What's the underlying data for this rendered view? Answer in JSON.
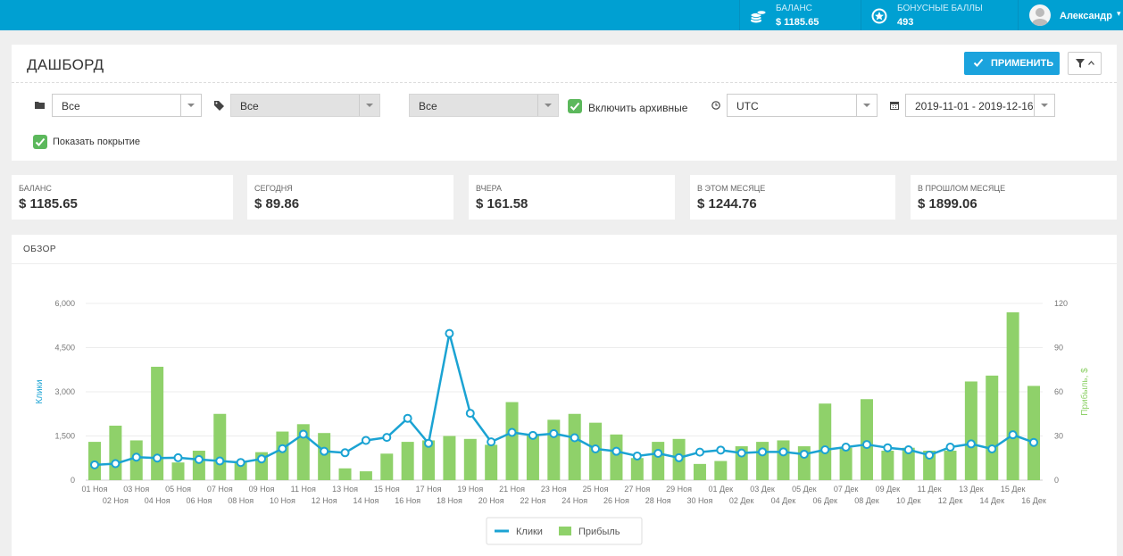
{
  "topbar": {
    "balance": {
      "label": "БАЛАНС",
      "value": "$ 1185.65",
      "icon": "coins-icon"
    },
    "bonus": {
      "label": "БОНУСНЫЕ БАЛЛЫ",
      "value": "493",
      "icon": "star-badge-icon"
    },
    "user": {
      "name": "Александр",
      "icon": "avatar-icon"
    }
  },
  "header": {
    "title": "ДАШБОРД",
    "apply_label": "ПРИМЕНИТЬ"
  },
  "filters": {
    "folder_value": "Все",
    "tag_value": "Все",
    "third_value": "Все",
    "archive_label": "Включить архивные",
    "archive_checked": true,
    "timezone": "UTC",
    "date_range": "2019-11-01 - 2019-12-16",
    "coverage_label": "Показать покрытие",
    "coverage_checked": true
  },
  "stats": [
    {
      "label": "БАЛАНС",
      "value": "$ 1185.65"
    },
    {
      "label": "СЕГОДНЯ",
      "value": "$ 89.86"
    },
    {
      "label": "ВЧЕРА",
      "value": "$ 161.58"
    },
    {
      "label": "В ЭТОМ МЕСЯЦЕ",
      "value": "$ 1244.76"
    },
    {
      "label": "В ПРОШЛОМ МЕСЯЦЕ",
      "value": "$ 1899.06"
    }
  ],
  "overview": {
    "title": "ОБЗОР"
  },
  "colors": {
    "accent": "#00a0d2",
    "clicks": "#1ba3d3",
    "profit": "#8fd16a",
    "checkbox": "#5cb85c"
  },
  "chart_data": {
    "type": "bar+line",
    "categories": [
      "01 Ноя",
      "02 Ноя",
      "03 Ноя",
      "04 Ноя",
      "05 Ноя",
      "06 Ноя",
      "07 Ноя",
      "08 Ноя",
      "09 Ноя",
      "10 Ноя",
      "11 Ноя",
      "12 Ноя",
      "13 Ноя",
      "14 Ноя",
      "15 Ноя",
      "16 Ноя",
      "17 Ноя",
      "18 Ноя",
      "19 Ноя",
      "20 Ноя",
      "21 Ноя",
      "22 Ноя",
      "23 Ноя",
      "24 Ноя",
      "25 Ноя",
      "26 Ноя",
      "27 Ноя",
      "28 Ноя",
      "29 Ноя",
      "30 Ноя",
      "01 Дек",
      "02 Дек",
      "03 Дек",
      "04 Дек",
      "05 Дек",
      "06 Дек",
      "07 Дек",
      "08 Дек",
      "09 Дек",
      "10 Дек",
      "11 Дек",
      "12 Дек",
      "13 Дек",
      "14 Дек",
      "15 Дек",
      "16 Дек"
    ],
    "series": [
      {
        "name": "Клики",
        "kind": "line",
        "axis": "left",
        "values": [
          520,
          560,
          780,
          750,
          760,
          700,
          650,
          600,
          720,
          1070,
          1560,
          980,
          930,
          1350,
          1450,
          2100,
          1250,
          4980,
          2270,
          1300,
          1620,
          1520,
          1580,
          1440,
          1060,
          980,
          820,
          910,
          760,
          950,
          1020,
          920,
          960,
          960,
          880,
          1030,
          1120,
          1210,
          1100,
          1030,
          850,
          1120,
          1230,
          1060,
          1540,
          1280
        ]
      },
      {
        "name": "Прибыль",
        "kind": "bar",
        "axis": "right",
        "values": [
          26,
          37,
          27,
          77,
          12,
          20,
          45,
          13,
          19,
          33,
          38,
          32,
          8,
          6,
          18,
          26,
          27,
          30,
          28,
          24,
          53,
          31,
          41,
          45,
          39,
          31,
          15,
          26,
          28,
          11,
          13,
          23,
          26,
          27,
          23,
          52,
          22,
          55,
          20,
          22,
          20,
          20,
          67,
          71,
          114,
          64
        ]
      }
    ],
    "y_left": {
      "label": "Клики",
      "ticks": [
        "0",
        "1,500",
        "3,000",
        "4,500",
        "6,000"
      ],
      "range": [
        0,
        6000
      ]
    },
    "y_right": {
      "label": "Прибыль, $",
      "ticks": [
        "0",
        "30",
        "60",
        "90",
        "120"
      ],
      "range": [
        0,
        120
      ]
    },
    "legend": [
      "Клики",
      "Прибыль"
    ],
    "legend_position": "bottom-center",
    "grid": true
  }
}
